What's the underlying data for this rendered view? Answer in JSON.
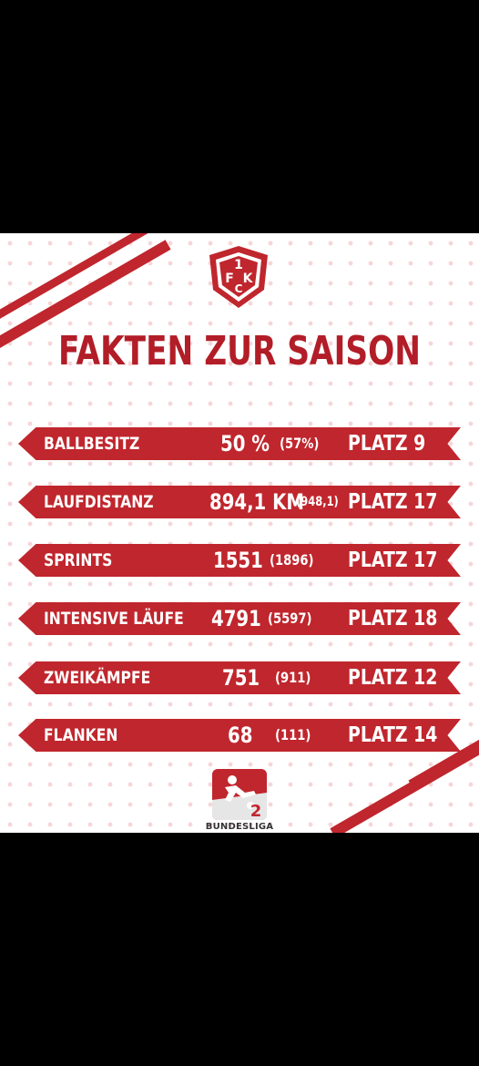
{
  "title": "FAKTEN ZUR SAISON",
  "club_logo": {
    "top": "1",
    "left": "F",
    "center": "C",
    "right": "K"
  },
  "league_logo": {
    "number": "2",
    "text": "BUNDESLIGA"
  },
  "stats": [
    {
      "label": "BALLBESITZ",
      "value": "50 %",
      "previous": "(57%)",
      "rank": "PLATZ 9"
    },
    {
      "label": "LAUFDISTANZ",
      "value": "894,1 KM",
      "previous": "(948,1)",
      "rank": "PLATZ 17"
    },
    {
      "label": "SPRINTS",
      "value": "1551",
      "previous": "(1896)",
      "rank": "PLATZ 17"
    },
    {
      "label": "INTENSIVE LÄUFE",
      "value": "4791",
      "previous": "(5597)",
      "rank": "PLATZ 18"
    },
    {
      "label": "ZWEIKÄMPFE",
      "value": "751",
      "previous": "(911)",
      "rank": "PLATZ 12"
    },
    {
      "label": "FLANKEN",
      "value": "68",
      "previous": "(111)",
      "rank": "PLATZ 14"
    }
  ],
  "colors": {
    "primary_red": "#c0262d",
    "title_red": "#b21d27",
    "background": "#ffffff",
    "letterbox": "#000000"
  }
}
